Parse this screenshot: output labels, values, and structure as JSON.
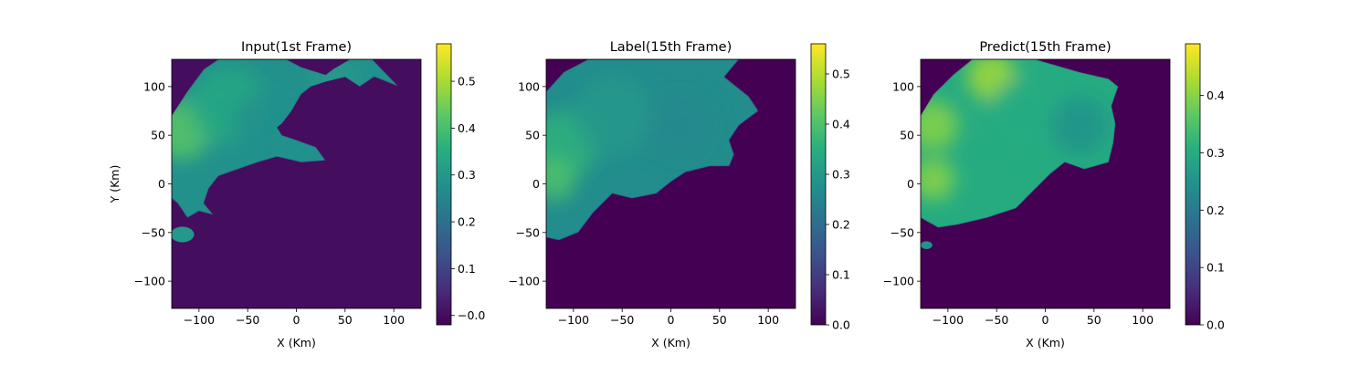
{
  "chart_data": [
    {
      "type": "heatmap",
      "title": "Input(1st Frame)",
      "xlabel": "X (Km)",
      "ylabel": "Y (Km)",
      "xlim": [
        -128,
        128
      ],
      "ylim": [
        -128,
        128
      ],
      "xticks": [
        -100,
        -50,
        0,
        50,
        100
      ],
      "xtick_labels": [
        "−100",
        "−50",
        "0",
        "50",
        "100"
      ],
      "yticks": [
        100,
        50,
        0,
        -50,
        -100
      ],
      "ytick_labels": [
        "100",
        "50",
        "0",
        "−50",
        "−100"
      ],
      "colormap": "viridis",
      "colorbar_range": [
        -0.02,
        0.58
      ],
      "colorbar_ticks": [
        0.0,
        0.1,
        0.2,
        0.3,
        0.4,
        0.5
      ],
      "colorbar_tick_labels": [
        "−0.0",
        "0.1",
        "0.2",
        "0.3",
        "0.4",
        "0.5"
      ],
      "background_value": 0.0,
      "echo_region": {
        "boundary": [
          [
            -128,
            70
          ],
          [
            -112,
            95
          ],
          [
            -95,
            118
          ],
          [
            -80,
            128
          ],
          [
            -10,
            128
          ],
          [
            5,
            120
          ],
          [
            30,
            112
          ],
          [
            38,
            118
          ],
          [
            55,
            128
          ],
          [
            78,
            128
          ],
          [
            105,
            100
          ],
          [
            80,
            110
          ],
          [
            65,
            100
          ],
          [
            50,
            110
          ],
          [
            30,
            105
          ],
          [
            15,
            100
          ],
          [
            5,
            92
          ],
          [
            -5,
            75
          ],
          [
            -15,
            62
          ],
          [
            -20,
            58
          ],
          [
            -15,
            50
          ],
          [
            0,
            45
          ],
          [
            20,
            38
          ],
          [
            30,
            24
          ],
          [
            5,
            22
          ],
          [
            -20,
            28
          ],
          [
            -40,
            22
          ],
          [
            -60,
            15
          ],
          [
            -80,
            8
          ],
          [
            -90,
            -5
          ],
          [
            -95,
            -20
          ],
          [
            -85,
            -32
          ],
          [
            -100,
            -28
          ],
          [
            -112,
            -35
          ],
          [
            -122,
            -20
          ],
          [
            -128,
            -15
          ]
        ],
        "blobs": [
          {
            "x": -118,
            "y": 55,
            "r": 30,
            "value": 0.42
          },
          {
            "x": -70,
            "y": 80,
            "r": 40,
            "value": 0.34
          },
          {
            "x": -30,
            "y": 60,
            "r": 35,
            "value": 0.28
          },
          {
            "x": 40,
            "y": 110,
            "r": 25,
            "value": 0.3
          }
        ],
        "base_value": 0.28
      },
      "small_echo": {
        "x": -117,
        "y": -52,
        "rx": 12,
        "ry": 8,
        "value": 0.3
      }
    },
    {
      "type": "heatmap",
      "title": "Label(15th Frame)",
      "xlabel": "X (Km)",
      "ylabel": "",
      "xlim": [
        -128,
        128
      ],
      "ylim": [
        -128,
        128
      ],
      "xticks": [
        -100,
        -50,
        0,
        50,
        100
      ],
      "xtick_labels": [
        "−100",
        "−50",
        "0",
        "50",
        "100"
      ],
      "yticks": [
        100,
        50,
        0,
        -50,
        -100
      ],
      "ytick_labels": [
        "100",
        "50",
        "0",
        "−50",
        "−100"
      ],
      "colormap": "viridis",
      "colorbar_range": [
        0.0,
        0.56
      ],
      "colorbar_ticks": [
        0.0,
        0.1,
        0.2,
        0.3,
        0.4,
        0.5
      ],
      "colorbar_tick_labels": [
        "0.0",
        "0.1",
        "0.2",
        "0.3",
        "0.4",
        "0.5"
      ],
      "background_value": 0.0,
      "echo_region": {
        "boundary": [
          [
            -128,
            95
          ],
          [
            -110,
            115
          ],
          [
            -85,
            128
          ],
          [
            70,
            128
          ],
          [
            55,
            110
          ],
          [
            80,
            90
          ],
          [
            90,
            75
          ],
          [
            70,
            60
          ],
          [
            60,
            45
          ],
          [
            65,
            30
          ],
          [
            60,
            18
          ],
          [
            40,
            18
          ],
          [
            15,
            12
          ],
          [
            0,
            2
          ],
          [
            -15,
            -10
          ],
          [
            -40,
            -15
          ],
          [
            -60,
            -10
          ],
          [
            -80,
            -30
          ],
          [
            -95,
            -50
          ],
          [
            -115,
            -58
          ],
          [
            -128,
            -55
          ]
        ],
        "blobs": [
          {
            "x": -110,
            "y": 40,
            "r": 35,
            "value": 0.36
          },
          {
            "x": -120,
            "y": 5,
            "r": 22,
            "value": 0.4
          },
          {
            "x": -60,
            "y": 70,
            "r": 40,
            "value": 0.3
          },
          {
            "x": 10,
            "y": 60,
            "r": 35,
            "value": 0.26
          }
        ],
        "base_value": 0.27
      },
      "small_echo": null
    },
    {
      "type": "heatmap",
      "title": "Predict(15th Frame)",
      "xlabel": "X (Km)",
      "ylabel": "",
      "xlim": [
        -128,
        128
      ],
      "ylim": [
        -128,
        128
      ],
      "xticks": [
        -100,
        -50,
        0,
        50,
        100
      ],
      "xtick_labels": [
        "−100",
        "−50",
        "0",
        "50",
        "100"
      ],
      "yticks": [
        100,
        50,
        0,
        -50,
        -100
      ],
      "ytick_labels": [
        "100",
        "50",
        "0",
        "−50",
        "−100"
      ],
      "colormap": "viridis",
      "colorbar_range": [
        0.0,
        0.49
      ],
      "colorbar_ticks": [
        0.0,
        0.1,
        0.2,
        0.3,
        0.4
      ],
      "colorbar_tick_labels": [
        "0.0",
        "0.1",
        "0.2",
        "0.3",
        "0.4"
      ],
      "background_value": 0.0,
      "echo_region": {
        "boundary": [
          [
            -128,
            70
          ],
          [
            -115,
            92
          ],
          [
            -95,
            112
          ],
          [
            -75,
            128
          ],
          [
            -10,
            128
          ],
          [
            35,
            115
          ],
          [
            65,
            108
          ],
          [
            75,
            100
          ],
          [
            68,
            80
          ],
          [
            72,
            62
          ],
          [
            70,
            42
          ],
          [
            65,
            22
          ],
          [
            40,
            15
          ],
          [
            20,
            22
          ],
          [
            5,
            10
          ],
          [
            -10,
            -5
          ],
          [
            -30,
            -25
          ],
          [
            -60,
            -35
          ],
          [
            -90,
            -42
          ],
          [
            -110,
            -45
          ],
          [
            -128,
            -35
          ]
        ],
        "blobs": [
          {
            "x": -55,
            "y": 110,
            "r": 25,
            "value": 0.42
          },
          {
            "x": -115,
            "y": 60,
            "r": 25,
            "value": 0.4
          },
          {
            "x": -115,
            "y": 5,
            "r": 22,
            "value": 0.4
          },
          {
            "x": -20,
            "y": 70,
            "r": 40,
            "value": 0.3
          },
          {
            "x": 35,
            "y": 60,
            "r": 30,
            "value": 0.25
          }
        ],
        "base_value": 0.3
      },
      "small_echo": {
        "x": -122,
        "y": -63,
        "rx": 6,
        "ry": 4,
        "value": 0.25
      }
    }
  ]
}
